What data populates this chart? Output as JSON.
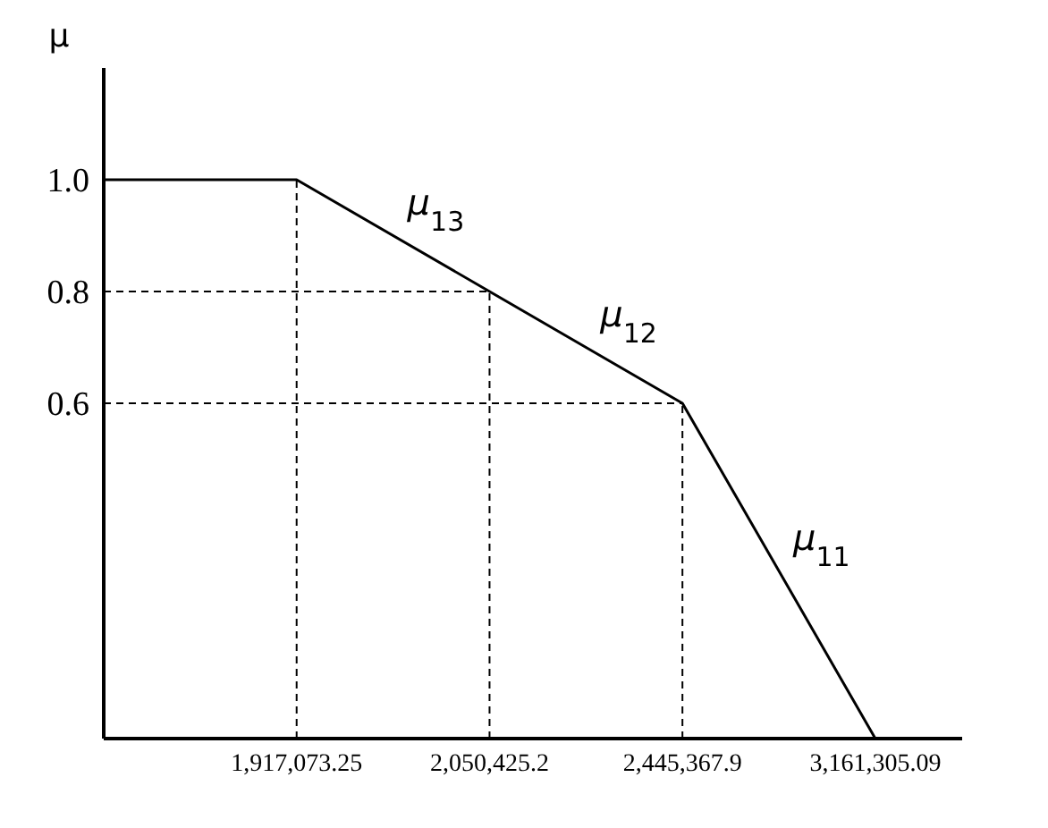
{
  "chart_data": {
    "type": "line",
    "ylabel": "μ",
    "categories": [
      null,
      "1,917,073.25",
      "2,050,425.2",
      "2,445,367.9",
      "3,161,305.09"
    ],
    "series": [
      {
        "color": "#000000",
        "values": [
          1.0,
          1.0,
          0.8,
          0.6,
          0
        ]
      }
    ],
    "ylim": [
      0,
      1.2
    ],
    "yticks": [
      {
        "value": 0.6,
        "label": "0.6"
      },
      {
        "value": 0.8,
        "label": "0.8"
      },
      {
        "value": 1,
        "label": "1.0"
      }
    ],
    "ref_lines": [
      {
        "axis": "y",
        "value": 0.8,
        "line_style": "dashed",
        "color": "#000000"
      },
      {
        "axis": "y",
        "value": 0.6,
        "line_style": "dashed",
        "color": "#000000"
      },
      {
        "axis": "x",
        "value": "1,917,073.25",
        "line_style": "dashed",
        "color": "#000000"
      },
      {
        "axis": "x",
        "value": "2,050,425.2",
        "line_style": "dashed",
        "color": "#000000"
      },
      {
        "axis": "x",
        "value": "2,445,367.9",
        "line_style": "dashed",
        "color": "#000000"
      }
    ],
    "annotations": [
      "μ$_{13}$",
      "μ$_{12}$",
      "μ$_{11}$"
    ],
    "marker": "none",
    "line_style": "solid"
  }
}
